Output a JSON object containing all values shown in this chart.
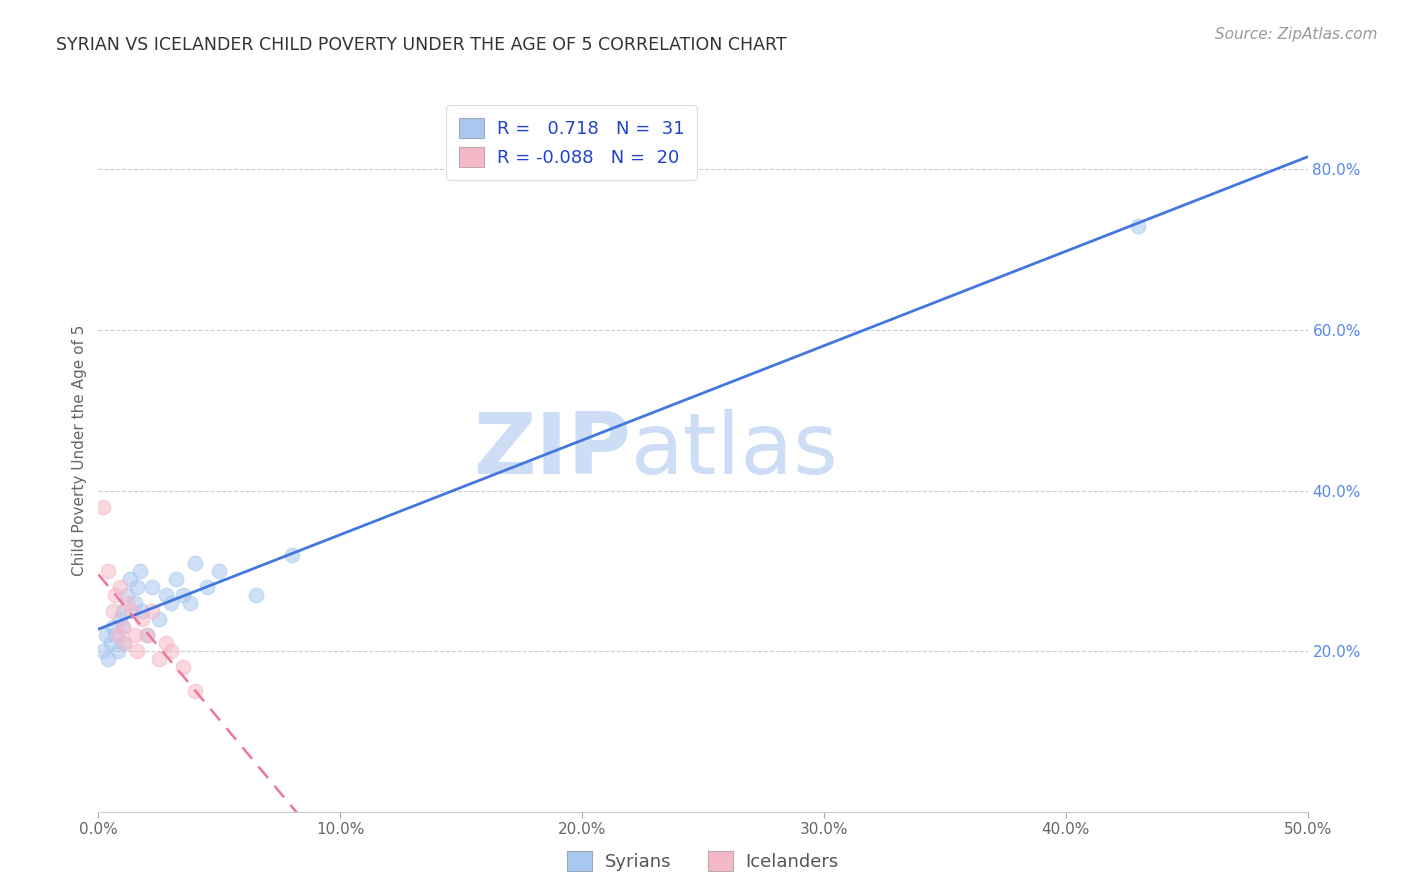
{
  "title": "SYRIAN VS ICELANDER CHILD POVERTY UNDER THE AGE OF 5 CORRELATION CHART",
  "source": "Source: ZipAtlas.com",
  "ylabel": "Child Poverty Under the Age of 5",
  "xlim": [
    0.0,
    0.5
  ],
  "ylim": [
    0.0,
    0.9
  ],
  "xticks": [
    0.0,
    0.1,
    0.2,
    0.3,
    0.4,
    0.5
  ],
  "yticks_right": [
    0.2,
    0.4,
    0.6,
    0.8
  ],
  "grid_color": "#cccccc",
  "background_color": "#ffffff",
  "watermark_zip": "ZIP",
  "watermark_atlas": "atlas",
  "watermark_color": "#ccddf5",
  "syrians_R": 0.718,
  "syrians_N": 31,
  "icelanders_R": -0.088,
  "icelanders_N": 20,
  "syrian_color": "#a8c8f0",
  "icelander_color": "#f5b8c8",
  "syrian_line_color": "#4477dd",
  "icelander_line_color": "#ee7799",
  "legend_text_color": "#2244cc",
  "legend_N_color": "#cc2222",
  "syrians_x": [
    0.002,
    0.003,
    0.004,
    0.005,
    0.006,
    0.007,
    0.008,
    0.009,
    0.01,
    0.01,
    0.01,
    0.012,
    0.013,
    0.015,
    0.016,
    0.017,
    0.018,
    0.02,
    0.022,
    0.025,
    0.028,
    0.03,
    0.032,
    0.035,
    0.038,
    0.04,
    0.045,
    0.05,
    0.065,
    0.08,
    0.43
  ],
  "syrians_y": [
    0.2,
    0.22,
    0.19,
    0.21,
    0.23,
    0.22,
    0.2,
    0.24,
    0.21,
    0.25,
    0.23,
    0.27,
    0.29,
    0.26,
    0.28,
    0.3,
    0.25,
    0.22,
    0.28,
    0.24,
    0.27,
    0.26,
    0.29,
    0.27,
    0.26,
    0.31,
    0.28,
    0.3,
    0.27,
    0.32,
    0.73
  ],
  "icelanders_x": [
    0.002,
    0.004,
    0.006,
    0.007,
    0.008,
    0.009,
    0.01,
    0.011,
    0.012,
    0.014,
    0.015,
    0.016,
    0.018,
    0.02,
    0.022,
    0.025,
    0.028,
    0.03,
    0.035,
    0.04
  ],
  "icelanders_y": [
    0.38,
    0.3,
    0.25,
    0.27,
    0.22,
    0.28,
    0.23,
    0.21,
    0.26,
    0.25,
    0.22,
    0.2,
    0.24,
    0.22,
    0.25,
    0.19,
    0.21,
    0.2,
    0.18,
    0.15
  ],
  "marker_size": 110,
  "marker_alpha": 0.55,
  "figsize": [
    14.06,
    8.92
  ],
  "dpi": 100,
  "title_fontsize": 12.5,
  "axis_label_fontsize": 11,
  "tick_fontsize": 11,
  "legend_fontsize": 13,
  "source_fontsize": 11
}
